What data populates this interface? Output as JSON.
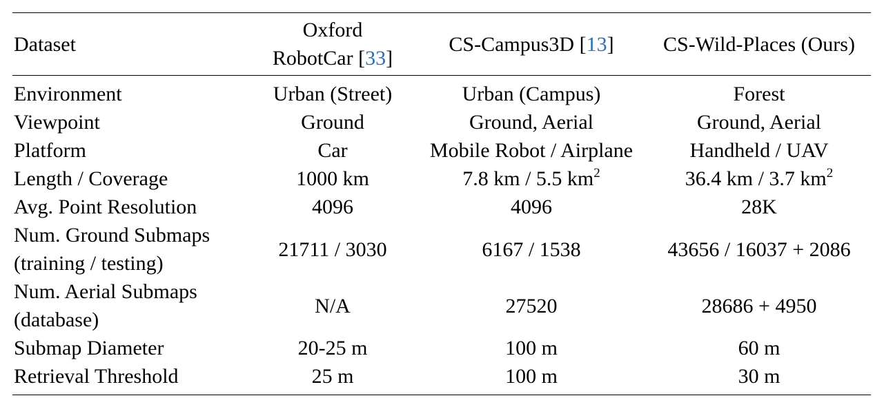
{
  "table": {
    "headers": {
      "dataset": "Dataset",
      "oxford_line1": "Oxford",
      "oxford_line2": "RobotCar [",
      "oxford_cite": "33",
      "oxford_close": "]",
      "campus": "CS-Campus3D [",
      "campus_cite": "13",
      "campus_close": "]",
      "wild": "CS-Wild-Places (Ours)"
    },
    "rows": [
      {
        "label": "Environment",
        "oxford": "Urban (Street)",
        "campus": "Urban (Campus)",
        "wild": "Forest"
      },
      {
        "label": "Viewpoint",
        "oxford": "Ground",
        "campus": "Ground, Aerial",
        "wild": "Ground, Aerial"
      },
      {
        "label": "Platform",
        "oxford": "Car",
        "campus": "Mobile Robot / Airplane",
        "wild": "Handheld / UAV"
      },
      {
        "label": "Length / Coverage",
        "oxford": "1000 km",
        "campus": "7.8 km / 5.5 km",
        "campus_sup": "2",
        "wild": "36.4 km / 3.7 km",
        "wild_sup": "2"
      },
      {
        "label": "Avg. Point Resolution",
        "oxford": "4096",
        "campus": "4096",
        "wild": "28K"
      },
      {
        "label_line1": "Num. Ground Submaps",
        "label_line2": "(training / testing)",
        "oxford": "21711 / 3030",
        "campus": "6167 / 1538",
        "wild": "43656 / 16037 + 2086"
      },
      {
        "label_line1": "Num. Aerial Submaps",
        "label_line2": "(database)",
        "oxford": "N/A",
        "campus": "27520",
        "wild": "28686 + 4950"
      },
      {
        "label": "Submap Diameter",
        "oxford": "20-25 m",
        "campus": "100 m",
        "wild": "60 m"
      },
      {
        "label": "Retrieval Threshold",
        "oxford": "25 m",
        "campus": "100 m",
        "wild": "30 m"
      }
    ]
  }
}
